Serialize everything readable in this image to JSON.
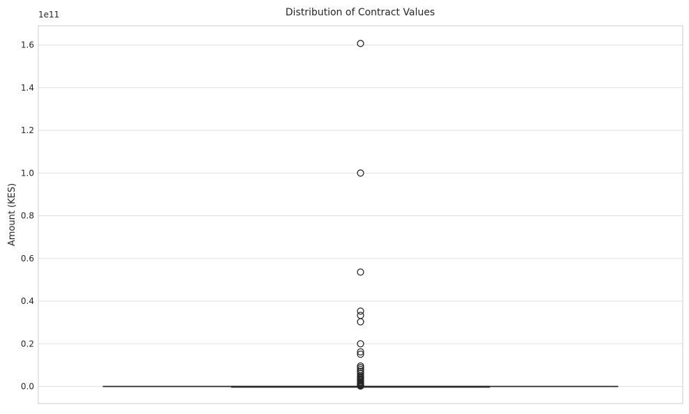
{
  "chart_data": {
    "type": "box",
    "title": "Distribution of Contract Values",
    "xlabel": "",
    "ylabel": "Amount (KES)",
    "y_offset_label": "1e11",
    "y_ticks": [
      0.0,
      0.2,
      0.4,
      0.6,
      0.8,
      1.0,
      1.2,
      1.4,
      1.6
    ],
    "y_tick_labels": [
      "0.0",
      "0.2",
      "0.4",
      "0.6",
      "0.8",
      "1.0",
      "1.2",
      "1.4",
      "1.6"
    ],
    "ylim": [
      -0.08,
      1.69
    ],
    "y_scale_factor": 100000000000.0,
    "grid": "horizontal",
    "box": {
      "q1": 0.0,
      "median": 0.0,
      "q3": 0.0,
      "whisker_low": 0.0,
      "whisker_high": 0.0
    },
    "outliers": [
      1.607,
      1.0,
      0.536,
      0.353,
      0.333,
      0.303,
      0.2,
      0.162,
      0.151,
      0.096,
      0.088,
      0.079,
      0.07,
      0.061,
      0.05,
      0.045,
      0.041,
      0.036,
      0.031,
      0.027,
      0.022,
      0.018,
      0.014,
      0.011,
      0.008,
      0.006,
      0.004,
      0.003,
      0.002
    ],
    "colors": {
      "box_line": "#262626",
      "grid": "#e0e0e0",
      "spine": "#cccccc",
      "outlier_edge": "#262626"
    }
  }
}
